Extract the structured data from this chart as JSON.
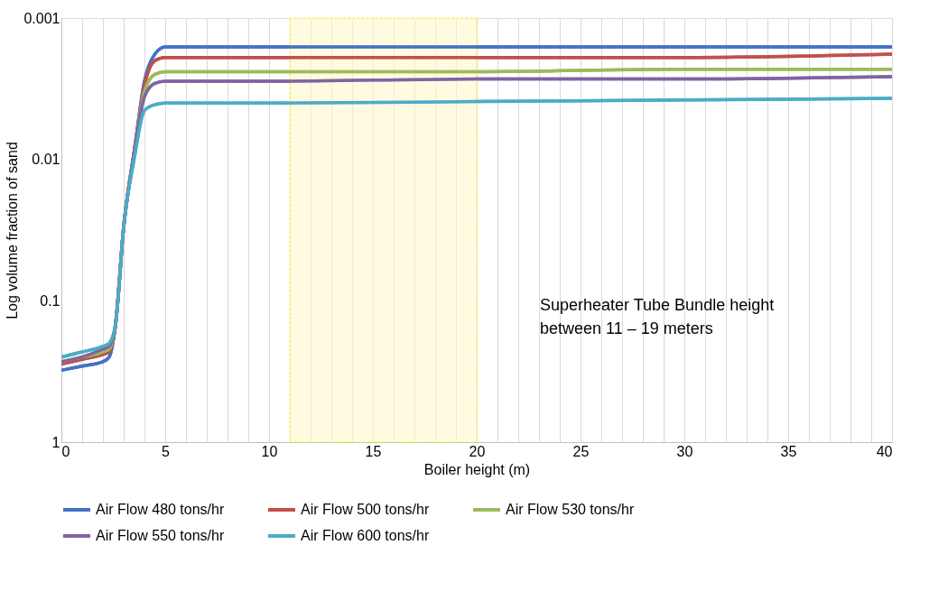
{
  "chart_data": {
    "type": "line",
    "xlabel": "Boiler height (m)",
    "ylabel": "Log volume fraction of sand",
    "log": "y",
    "ylim": [
      1,
      0.001
    ],
    "yticks": [
      {
        "value": 1,
        "label": "1"
      },
      {
        "value": 0.1,
        "label": "0.1"
      },
      {
        "value": 0.01,
        "label": "0.01"
      },
      {
        "value": 0.001,
        "label": "0.001"
      }
    ],
    "xlim": [
      0,
      40
    ],
    "xticks": [
      0,
      {
        "value": 1,
        "label": null
      },
      {
        "value": 2,
        "label": null
      },
      {
        "value": 3,
        "label": null
      },
      {
        "value": 4,
        "label": null
      },
      5,
      {
        "value": 6,
        "label": null
      },
      {
        "value": 7,
        "label": null
      },
      {
        "value": 8,
        "label": null
      },
      {
        "value": 9,
        "label": null
      },
      10,
      {
        "value": 11,
        "label": null
      },
      {
        "value": 12,
        "label": null
      },
      {
        "value": 13,
        "label": null
      },
      {
        "value": 14,
        "label": null
      },
      15,
      {
        "value": 16,
        "label": null
      },
      {
        "value": 17,
        "label": null
      },
      {
        "value": 18,
        "label": null
      },
      {
        "value": 19,
        "label": null
      },
      20,
      {
        "value": 21,
        "label": null
      },
      {
        "value": 22,
        "label": null
      },
      {
        "value": 23,
        "label": null
      },
      {
        "value": 24,
        "label": null
      },
      25,
      {
        "value": 26,
        "label": null
      },
      {
        "value": 27,
        "label": null
      },
      {
        "value": 28,
        "label": null
      },
      {
        "value": 29,
        "label": null
      },
      30,
      {
        "value": 31,
        "label": null
      },
      {
        "value": 32,
        "label": null
      },
      {
        "value": 33,
        "label": null
      },
      {
        "value": 34,
        "label": null
      },
      35,
      {
        "value": 36,
        "label": null
      },
      {
        "value": 37,
        "label": null
      },
      {
        "value": 38,
        "label": null
      },
      {
        "value": 39,
        "label": null
      },
      40
    ],
    "grid": "x",
    "legend": "bottom",
    "line_style": "solid",
    "marker": "none",
    "x": [
      0,
      1,
      2,
      2.3,
      2.6,
      3,
      3.5,
      4,
      4.5,
      5,
      6,
      10,
      20,
      30,
      40
    ],
    "series": [
      {
        "name": "Air Flow 480 tons/hr",
        "color": "#4472c4",
        "values": [
          0.31,
          0.29,
          0.27,
          0.25,
          0.15,
          0.03,
          0.009,
          0.0028,
          0.0018,
          0.0016,
          0.0016,
          0.0016,
          0.0016,
          0.0016,
          0.0016
        ]
      },
      {
        "name": "Air Flow 500 tons/hr",
        "color": "#c0504d",
        "values": [
          0.28,
          0.26,
          0.24,
          0.23,
          0.15,
          0.03,
          0.009,
          0.003,
          0.002,
          0.0019,
          0.0019,
          0.0019,
          0.0019,
          0.0019,
          0.0018
        ]
      },
      {
        "name": "Air Flow 530 tons/hr",
        "color": "#9bbb59",
        "values": [
          0.27,
          0.25,
          0.23,
          0.22,
          0.15,
          0.03,
          0.009,
          0.0033,
          0.0025,
          0.0024,
          0.0024,
          0.0024,
          0.0024,
          0.0023,
          0.0023
        ]
      },
      {
        "name": "Air Flow 550 tons/hr",
        "color": "#8064a2",
        "values": [
          0.27,
          0.25,
          0.22,
          0.21,
          0.15,
          0.03,
          0.009,
          0.0036,
          0.0029,
          0.0028,
          0.0028,
          0.0028,
          0.0027,
          0.0027,
          0.0026
        ]
      },
      {
        "name": "Air Flow 600 tons/hr",
        "color": "#4bacc6",
        "values": [
          0.25,
          0.23,
          0.21,
          0.2,
          0.15,
          0.03,
          0.01,
          0.0045,
          0.0041,
          0.004,
          0.004,
          0.004,
          0.0039,
          0.0038,
          0.0037
        ]
      }
    ],
    "bands": [
      {
        "axis": "x",
        "from": 11,
        "to": 20,
        "color": "#fffacd"
      }
    ],
    "annotations": [
      "Superheater Tube Bundle height\nbetween 11 – 19 meters"
    ]
  }
}
